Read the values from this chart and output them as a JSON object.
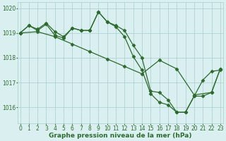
{
  "series": [
    {
      "x": [
        0,
        1,
        2,
        3,
        4,
        5,
        6,
        7,
        8,
        9,
        10,
        11,
        12,
        13,
        14,
        15,
        16,
        17,
        18,
        19,
        20,
        21,
        22,
        23
      ],
      "y": [
        1019.0,
        1019.3,
        1019.15,
        1019.4,
        1019.05,
        1018.85,
        1019.2,
        1019.1,
        1019.1,
        1019.85,
        1019.45,
        1019.3,
        1019.1,
        1018.5,
        1018.0,
        1016.65,
        1016.6,
        1016.3,
        1015.8,
        1015.8,
        1016.45,
        1017.1,
        1017.45,
        1017.5
      ]
    },
    {
      "x": [
        0,
        1,
        2,
        3,
        4,
        5,
        6,
        7,
        8,
        9,
        10,
        11,
        12,
        13,
        14,
        15,
        16,
        17,
        18,
        19,
        20,
        21,
        22,
        23
      ],
      "y": [
        1019.0,
        1019.3,
        1019.1,
        1019.35,
        1018.9,
        1018.8,
        1019.2,
        1019.1,
        1019.1,
        1019.85,
        1019.45,
        1019.25,
        1018.85,
        1018.05,
        1017.5,
        1016.55,
        1016.2,
        1016.1,
        1015.8,
        1015.8,
        1016.45,
        1016.45,
        1016.6,
        1017.55
      ]
    },
    {
      "x": [
        0,
        2,
        4,
        6,
        8,
        10,
        12,
        14,
        16,
        18,
        20,
        22,
        23
      ],
      "y": [
        1019.0,
        1019.05,
        1018.85,
        1018.55,
        1018.25,
        1017.95,
        1017.65,
        1017.35,
        1017.9,
        1017.55,
        1016.5,
        1016.6,
        1017.55
      ]
    }
  ],
  "line_color": "#2d6a2d",
  "marker": "D",
  "markersize": 2.5,
  "linewidth": 0.9,
  "xlim": [
    -0.3,
    23.3
  ],
  "ylim": [
    1015.35,
    1020.25
  ],
  "yticks": [
    1016,
    1017,
    1018,
    1019,
    1020
  ],
  "xticks": [
    0,
    1,
    2,
    3,
    4,
    5,
    6,
    7,
    8,
    9,
    10,
    11,
    12,
    13,
    14,
    15,
    16,
    17,
    18,
    19,
    20,
    21,
    22,
    23
  ],
  "xlabel": "Graphe pression niveau de la mer (hPa)",
  "bg_color": "#daf0f0",
  "grid_color": "#aacece",
  "text_color": "#2d6a2d",
  "xlabel_fontsize": 6.5,
  "tick_fontsize": 5.5,
  "figwidth": 3.2,
  "figheight": 2.0,
  "dpi": 100
}
